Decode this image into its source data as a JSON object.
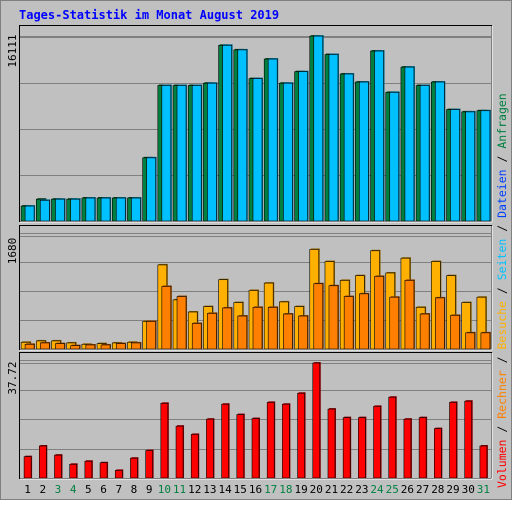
{
  "title": "Tages-Statistik im Monat August 2019",
  "legend_right": {
    "items": [
      {
        "label": "Anfragen",
        "color": "#008040"
      },
      {
        "label": "Dateien",
        "color": "#0040ff"
      },
      {
        "label": "Seiten",
        "color": "#00c0ff"
      },
      {
        "label": "Besuche",
        "color": "#ffb000"
      },
      {
        "label": "Rechner",
        "color": "#ff8000"
      },
      {
        "label": "Volumen",
        "color": "#ff0000"
      }
    ],
    "separator": "/"
  },
  "chart_data": [
    {
      "type": "bar",
      "name": "top",
      "ymax_label": "16111",
      "ymax": 16111,
      "categories": [
        "1",
        "2",
        "3",
        "4",
        "5",
        "6",
        "7",
        "8",
        "9",
        "10",
        "11",
        "12",
        "13",
        "14",
        "15",
        "16",
        "17",
        "18",
        "19",
        "20",
        "21",
        "22",
        "23",
        "24",
        "25",
        "26",
        "27",
        "28",
        "29",
        "30",
        "31"
      ],
      "weekend_days": [
        "3",
        "4",
        "10",
        "11",
        "17",
        "18",
        "24",
        "25",
        "31"
      ],
      "series": [
        {
          "name": "Anfragen",
          "color": "#008040",
          "values": [
            1300,
            1900,
            1900,
            1900,
            2000,
            2000,
            2000,
            2000,
            5500,
            11800,
            11800,
            11800,
            12000,
            15300,
            14900,
            12400,
            14100,
            12000,
            13000,
            16100,
            14500,
            12800,
            12100,
            14800,
            11200,
            13400,
            11800,
            12100,
            9700,
            9500,
            9600
          ]
        },
        {
          "name": "Seiten",
          "color": "#00c0ff",
          "values": [
            1300,
            1800,
            1900,
            1900,
            2000,
            2000,
            2000,
            2000,
            5500,
            11800,
            11800,
            11800,
            12000,
            15300,
            14900,
            12400,
            14100,
            12000,
            13000,
            16100,
            14500,
            12800,
            12100,
            14800,
            11200,
            13400,
            11800,
            12100,
            9700,
            9500,
            9600
          ]
        }
      ]
    },
    {
      "type": "bar",
      "name": "middle",
      "ymax_label": "1680",
      "ymax": 1680,
      "series": [
        {
          "name": "Besuche",
          "color": "#ffb000",
          "values": [
            100,
            120,
            120,
            90,
            70,
            80,
            90,
            100,
            410,
            1250,
            730,
            550,
            630,
            1030,
            690,
            870,
            980,
            700,
            630,
            1480,
            1300,
            1020,
            1090,
            1460,
            1130,
            1350,
            620,
            1300,
            1090,
            690,
            770
          ]
        },
        {
          "name": "Rechner",
          "color": "#ff8000",
          "values": [
            70,
            90,
            80,
            50,
            60,
            60,
            80,
            90,
            410,
            930,
            780,
            380,
            530,
            610,
            490,
            620,
            620,
            520,
            490,
            970,
            940,
            780,
            820,
            1080,
            770,
            1020,
            520,
            760,
            500,
            240,
            240
          ]
        }
      ]
    },
    {
      "type": "bar",
      "name": "bottom",
      "ymax_label": "37.72",
      "ymax": 37.72,
      "series": [
        {
          "name": "Volumen",
          "color": "#ff0000",
          "values": [
            7,
            10.5,
            7.5,
            4.5,
            5.5,
            5,
            2.5,
            6.5,
            9,
            24.5,
            17,
            14.3,
            19.3,
            24.2,
            20.8,
            19.5,
            24.8,
            24.2,
            27.8,
            37.7,
            22.6,
            19.8,
            19.8,
            23.5,
            26.5,
            19.3,
            19.8,
            16.2,
            24.8,
            25.2,
            10.5
          ]
        }
      ]
    }
  ]
}
